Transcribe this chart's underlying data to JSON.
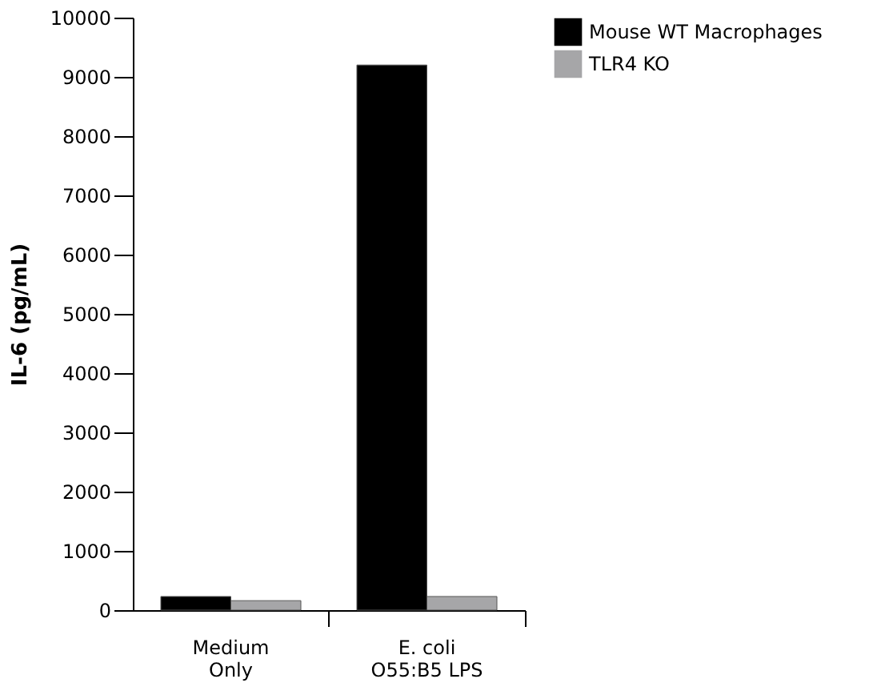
{
  "chart_data": {
    "type": "bar",
    "ylabel": "IL-6 (pg/mL)",
    "categories": [
      "Medium\nOnly",
      "E. coli\nO55:B5 LPS"
    ],
    "series": [
      {
        "name": "Mouse WT Macrophages",
        "color": "#000000",
        "values": [
          230,
          9200
        ]
      },
      {
        "name": "TLR4 KO",
        "color": "#a6a6a8",
        "values": [
          160,
          230
        ]
      }
    ],
    "ylim": [
      0,
      10000
    ],
    "yticks": [
      0,
      1000,
      2000,
      3000,
      4000,
      5000,
      6000,
      7000,
      8000,
      9000,
      10000
    ],
    "grid": false,
    "legend": "right"
  }
}
